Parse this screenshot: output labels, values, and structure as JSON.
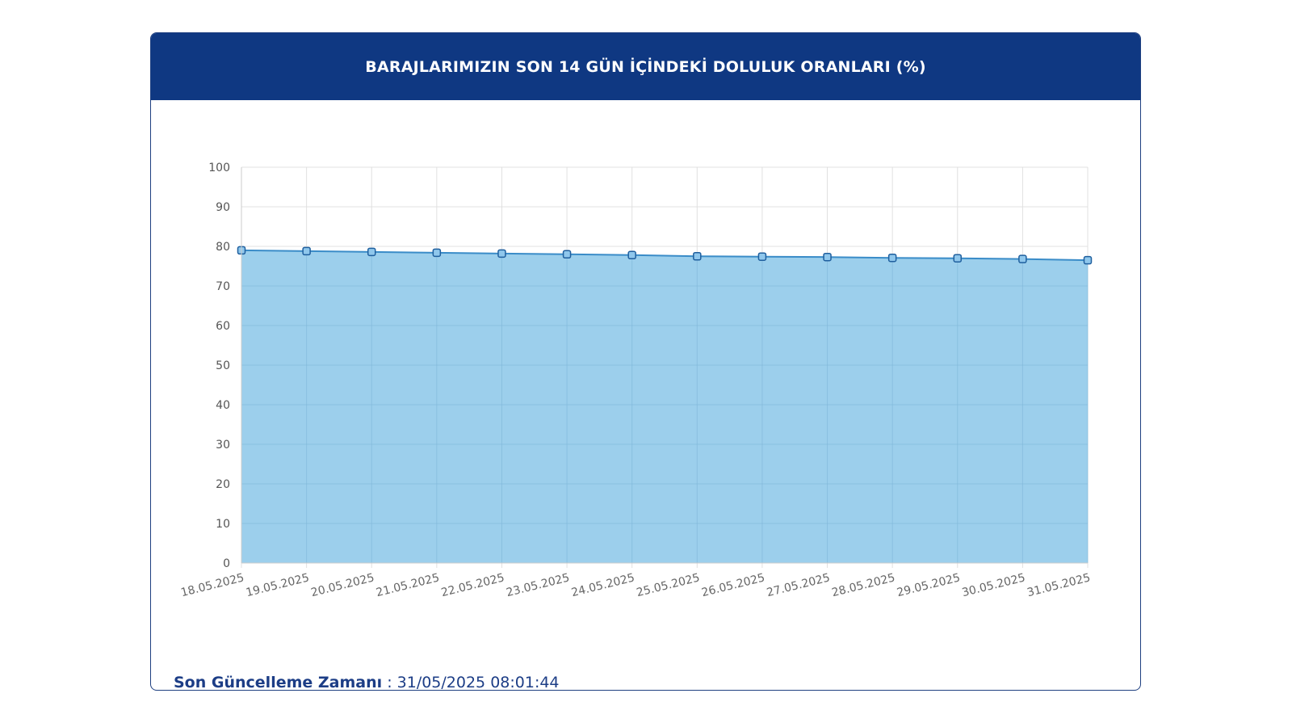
{
  "card": {
    "title": "BARAJLARIMIZIN SON 14 GÜN İÇİNDEKİ DOLULUK ORANLARI (%)"
  },
  "footer": {
    "label": "Son Güncelleme Zamanı",
    "separator": " : ",
    "value": "31/05/2025 08:01:44"
  },
  "colors": {
    "header_bg": "#0f3882",
    "area_fill": "#9ccfec",
    "line": "#3a8cc8",
    "marker_stroke": "#1f5f9e",
    "marker_fill": "#8fc7ec",
    "grid": "#e0e0e0"
  },
  "chart_data": {
    "type": "area",
    "title": "BARAJLARIMIZIN SON 14 GÜN İÇİNDEKİ DOLULUK ORANLARI (%)",
    "xlabel": "",
    "ylabel": "",
    "categories": [
      "18.05.2025",
      "19.05.2025",
      "20.05.2025",
      "21.05.2025",
      "22.05.2025",
      "23.05.2025",
      "24.05.2025",
      "25.05.2025",
      "26.05.2025",
      "27.05.2025",
      "28.05.2025",
      "29.05.2025",
      "30.05.2025",
      "31.05.2025"
    ],
    "series": [
      {
        "values": [
          79.0,
          78.8,
          78.6,
          78.4,
          78.2,
          78.0,
          77.8,
          77.5,
          77.4,
          77.3,
          77.1,
          77.0,
          76.8,
          76.5
        ]
      }
    ],
    "ylim": [
      0,
      100
    ],
    "yticks": [
      0,
      10,
      20,
      30,
      40,
      50,
      60,
      70,
      80,
      90,
      100
    ],
    "grid": true,
    "legend": "none"
  }
}
